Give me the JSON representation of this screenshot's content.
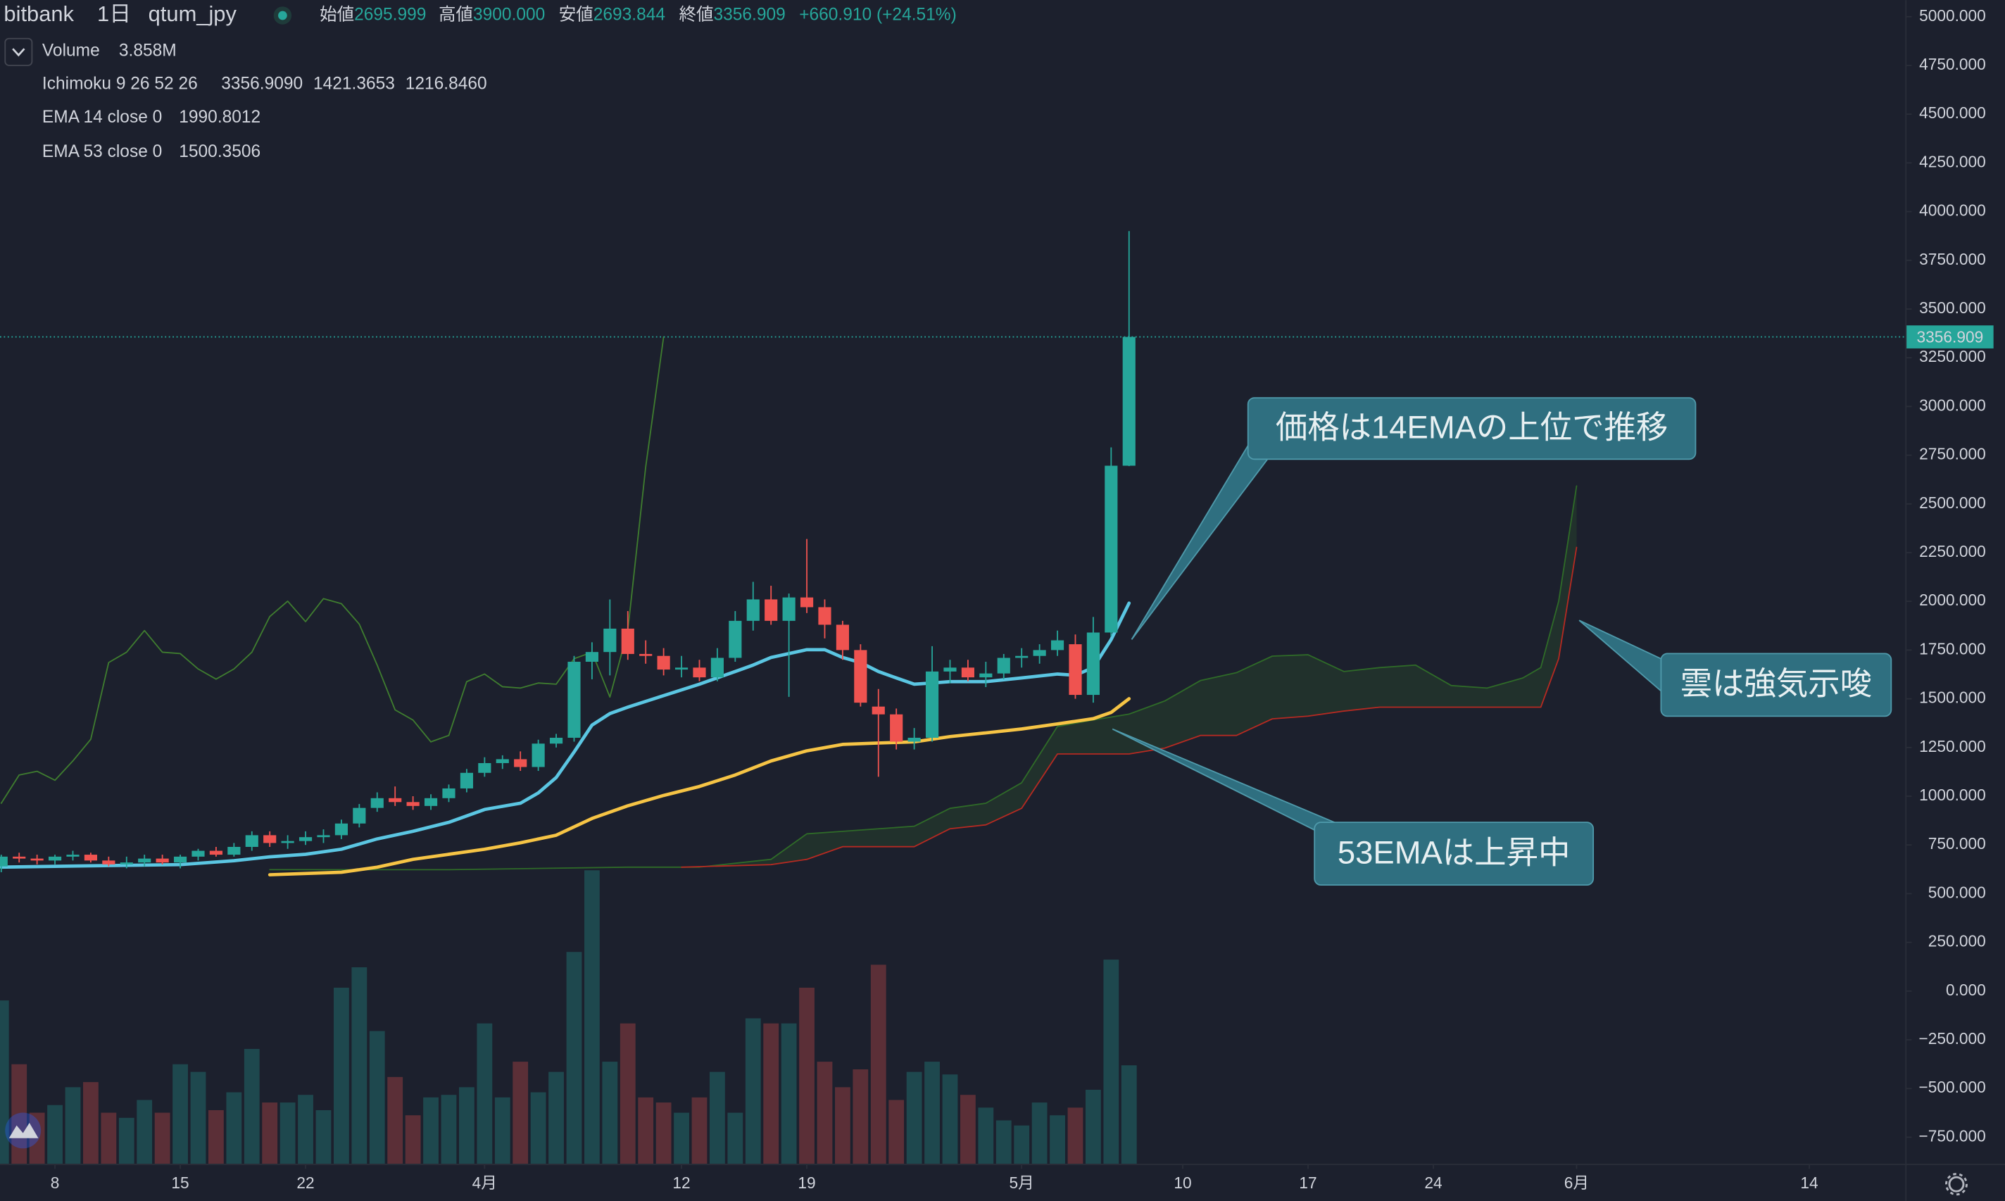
{
  "chart_data": {
    "type": "candlestick",
    "exchange": "bitbank",
    "interval": "1日",
    "symbol": "qtum_jpy",
    "ohlc_labels": [
      "始値",
      "高値",
      "安値",
      "終値"
    ],
    "ohlc_value_labels": [
      "2695.999",
      "3900.000",
      "2693.844",
      "3356.909"
    ],
    "change_label": "+660.910 (+24.51%)",
    "up_color": "#26a69a",
    "down_color": "#ef5350",
    "x": [
      5,
      6,
      7,
      8,
      9,
      10,
      11,
      12,
      13,
      14,
      15,
      16,
      17,
      18,
      19,
      20,
      21,
      22,
      23,
      24,
      25,
      26,
      27,
      28,
      29,
      30,
      31,
      32,
      33,
      34,
      35,
      36,
      37,
      38,
      39,
      40,
      41,
      42,
      43,
      44,
      45,
      46,
      47,
      48,
      49,
      50,
      51,
      52,
      53,
      54,
      55,
      56,
      57,
      58,
      59,
      60,
      61,
      62,
      63,
      64,
      65,
      66,
      67,
      68
    ],
    "open": [
      640,
      690,
      680,
      670,
      690,
      700,
      670,
      650,
      660,
      680,
      660,
      690,
      720,
      700,
      740,
      800,
      760,
      770,
      790,
      800,
      860,
      940,
      990,
      970,
      950,
      990,
      1040,
      1120,
      1170,
      1190,
      1150,
      1270,
      1300,
      1690,
      1740,
      1860,
      1730,
      1720,
      1650,
      1660,
      1610,
      1710,
      1900,
      2010,
      1900,
      2020,
      1970,
      1880,
      1750,
      1460,
      1420,
      1280,
      1300,
      1640,
      1660,
      1610,
      1630,
      1710,
      1720,
      1750,
      1780,
      1520,
      1840,
      2695.999
    ],
    "high": [
      700,
      710,
      700,
      700,
      720,
      710,
      690,
      690,
      700,
      700,
      700,
      730,
      740,
      760,
      820,
      820,
      800,
      820,
      830,
      880,
      960,
      1020,
      1050,
      1000,
      1010,
      1060,
      1140,
      1200,
      1210,
      1230,
      1290,
      1320,
      1720,
      1790,
      2010,
      1950,
      1800,
      1760,
      1720,
      1700,
      1760,
      1950,
      2100,
      2080,
      2040,
      2320,
      2010,
      1900,
      1780,
      1550,
      1450,
      1350,
      1770,
      1700,
      1700,
      1690,
      1730,
      1760,
      1780,
      1850,
      1830,
      1920,
      2790,
      3900
    ],
    "low": [
      610,
      660,
      650,
      650,
      670,
      660,
      640,
      630,
      640,
      650,
      630,
      670,
      690,
      690,
      720,
      740,
      730,
      750,
      760,
      780,
      840,
      920,
      950,
      930,
      930,
      970,
      1020,
      1100,
      1140,
      1130,
      1130,
      1250,
      1280,
      1600,
      1620,
      1700,
      1680,
      1620,
      1610,
      1590,
      1590,
      1690,
      1850,
      1880,
      1510,
      1940,
      1810,
      1700,
      1460,
      1100,
      1240,
      1240,
      1280,
      1580,
      1590,
      1560,
      1600,
      1660,
      1680,
      1720,
      1500,
      1480,
      1820,
      2693.844
    ],
    "close": [
      690,
      680,
      670,
      690,
      700,
      670,
      650,
      660,
      680,
      660,
      690,
      720,
      700,
      740,
      800,
      760,
      770,
      790,
      800,
      860,
      940,
      990,
      970,
      950,
      990,
      1040,
      1120,
      1170,
      1190,
      1150,
      1270,
      1300,
      1690,
      1740,
      1860,
      1730,
      1720,
      1650,
      1660,
      1610,
      1710,
      1900,
      2010,
      1900,
      2020,
      1970,
      1880,
      1750,
      1480,
      1420,
      1280,
      1300,
      1640,
      1660,
      1610,
      1630,
      1710,
      1720,
      1750,
      1800,
      1520,
      1840,
      2696,
      3356.909
    ],
    "volume": {
      "name": "Volume",
      "value_label": "3.858M",
      "legend_color": "#26a69a",
      "axis": "y2",
      "values": [
        6.4,
        3.9,
        2.0,
        2.3,
        3.0,
        3.2,
        2.0,
        1.8,
        2.5,
        2.0,
        3.9,
        3.6,
        2.1,
        2.8,
        4.5,
        2.4,
        2.4,
        2.7,
        2.1,
        6.9,
        7.7,
        5.2,
        3.4,
        1.9,
        2.6,
        2.7,
        3.0,
        5.5,
        2.6,
        4.0,
        2.8,
        3.6,
        8.3,
        11.5,
        4.0,
        5.5,
        2.6,
        2.4,
        2.0,
        2.6,
        3.6,
        2.0,
        5.7,
        5.5,
        5.5,
        6.9,
        4.0,
        3.0,
        3.7,
        7.8,
        2.5,
        3.6,
        4.0,
        3.5,
        2.7,
        2.2,
        1.7,
        1.5,
        2.4,
        1.9,
        2.2,
        2.9,
        8.0,
        3.858
      ]
    },
    "ichimoku": {
      "name": "Ichimoku 9 26 52 26",
      "value_labels": [
        "3356.9090",
        "1421.3653",
        "1216.8460"
      ],
      "legend_colors": [
        "#6aa84f",
        "#6aa84f",
        "#e5483f"
      ],
      "cloud_color": "#2e5a2a",
      "lines": [
        {
          "color": "#3f7d2f",
          "x": [
            5,
            6,
            7,
            8,
            9,
            10,
            11,
            12,
            13,
            14,
            15,
            16,
            17,
            18,
            19,
            20,
            21,
            22,
            23,
            24,
            25,
            26,
            27,
            28,
            29,
            30,
            31,
            32,
            33,
            34,
            35,
            36,
            37,
            38,
            39,
            40,
            41,
            42
          ],
          "values": [
            964,
            1109,
            1128,
            1082,
            1181,
            1292,
            1686,
            1739,
            1850,
            1739,
            1732,
            1653,
            1601,
            1653,
            1739,
            1922,
            2001,
            1896,
            2014,
            1988,
            1883,
            1673,
            1443,
            1391,
            1279,
            1312,
            1588,
            1627,
            1562,
            1555,
            1581,
            1575,
            1706,
            1739,
            1509,
            1850,
            2690,
            3356.909
          ]
        },
        {
          "color": "#2f6b28",
          "x": [
            20,
            30,
            40,
            44,
            48,
            50,
            52,
            56,
            58,
            60,
            62,
            64,
            66,
            68,
            70,
            72,
            74,
            76,
            78,
            80,
            82,
            84,
            86,
            88,
            90,
            91,
            92,
            93
          ],
          "values": [
            623,
            623,
            636,
            636,
            676,
            807,
            820,
            846,
            938,
            964,
            1069,
            1358,
            1391,
            1421.3653,
            1489,
            1594,
            1634,
            1719,
            1726,
            1640,
            1660,
            1673,
            1568,
            1555,
            1607,
            1660,
            2001,
            2592
          ]
        },
        {
          "color": "#b52a22",
          "x": [
            43,
            48,
            50,
            52,
            56,
            58,
            60,
            62,
            64,
            68,
            70,
            72,
            74,
            76,
            78,
            80,
            82,
            90,
            91,
            92,
            93
          ],
          "values": [
            636,
            649,
            676,
            741,
            741,
            833,
            853,
            938,
            1216.846,
            1216.846,
            1247,
            1312,
            1312,
            1397,
            1411,
            1437,
            1457,
            1457,
            1457,
            1706,
            2277
          ]
        }
      ]
    },
    "ema": [
      {
        "name": "EMA 14 close 0",
        "value_label": "1990.8012",
        "color": "#5bc6e2",
        "x": [
          5,
          10,
          15,
          18,
          20,
          22,
          24,
          26,
          28,
          30,
          32,
          34,
          35,
          36,
          37,
          38,
          39,
          40,
          42,
          44,
          46,
          47,
          48,
          50,
          51,
          52,
          53,
          54,
          55,
          56,
          57,
          58,
          60,
          62,
          64,
          65,
          66,
          67,
          68
        ],
        "values": [
          636,
          643,
          649,
          669,
          689,
          702,
          728,
          781,
          820,
          866,
          932,
          964,
          1017,
          1096,
          1227,
          1365,
          1424,
          1457,
          1516,
          1575,
          1640,
          1673,
          1712,
          1752,
          1752,
          1712,
          1686,
          1640,
          1607,
          1575,
          1581,
          1588,
          1588,
          1607,
          1627,
          1621,
          1660,
          1804,
          1990.8012
        ]
      },
      {
        "name": "EMA 53 close 0",
        "value_label": "1500.3506",
        "color": "#f6c445",
        "x": [
          20,
          24,
          26,
          28,
          30,
          32,
          34,
          36,
          38,
          40,
          42,
          44,
          46,
          48,
          50,
          52,
          54,
          56,
          58,
          60,
          62,
          64,
          66,
          67,
          68
        ],
        "values": [
          597,
          610,
          636,
          676,
          702,
          728,
          761,
          800,
          886,
          951,
          1004,
          1050,
          1109,
          1181,
          1233,
          1266,
          1273,
          1279,
          1306,
          1325,
          1345,
          1371,
          1398,
          1430,
          1500.3506
        ]
      }
    ],
    "last_price": {
      "value": 3356.909,
      "label": "3356.909"
    },
    "annotations": [
      "価格は14EMAの上位で推移",
      "雲は強気示唆",
      "53EMAは上昇中"
    ],
    "xlim": [
      4.93,
      111.36
    ],
    "xticks": [
      8,
      15,
      22,
      {
        "value": 32,
        "label": "4月"
      },
      {
        "value": 43,
        "label": "12"
      },
      {
        "value": 50,
        "label": "19"
      },
      {
        "value": 62,
        "label": "5月"
      },
      {
        "value": 71,
        "label": "10"
      },
      {
        "value": 78,
        "label": "17"
      },
      {
        "value": 85,
        "label": "24"
      },
      {
        "value": 93,
        "label": "6月"
      },
      {
        "value": 106,
        "label": "14"
      }
    ],
    "ylim": [
      -886,
      5085
    ],
    "yticks": [
      {
        "value": 5000,
        "label": "5000.000"
      },
      {
        "value": 4750,
        "label": "4750.000"
      },
      {
        "value": 4500,
        "label": "4500.000"
      },
      {
        "value": 4250,
        "label": "4250.000"
      },
      {
        "value": 4000,
        "label": "4000.000"
      },
      {
        "value": 3750,
        "label": "3750.000"
      },
      {
        "value": 3500,
        "label": "3500.000"
      },
      {
        "value": 3250,
        "label": "3250.000"
      },
      {
        "value": 3000,
        "label": "3000.000"
      },
      {
        "value": 2750,
        "label": "2750.000"
      },
      {
        "value": 2500,
        "label": "2500.000"
      },
      {
        "value": 2250,
        "label": "2250.000"
      },
      {
        "value": 2000,
        "label": "2000.000"
      },
      {
        "value": 1750,
        "label": "1750.000"
      },
      {
        "value": 1500,
        "label": "1500.000"
      },
      {
        "value": 1250,
        "label": "1250.000"
      },
      {
        "value": 1000,
        "label": "1000.000"
      },
      {
        "value": 750,
        "label": "750.000"
      },
      {
        "value": 500,
        "label": "500.000"
      },
      {
        "value": 250,
        "label": "250.000"
      },
      {
        "value": 0,
        "label": "0.000"
      },
      {
        "value": -250,
        "label": "−250.000"
      },
      {
        "value": -500,
        "label": "−500.000"
      },
      {
        "value": -750,
        "label": "−750.000"
      }
    ],
    "y2lim": [
      0,
      45.6
    ],
    "grid": false
  }
}
